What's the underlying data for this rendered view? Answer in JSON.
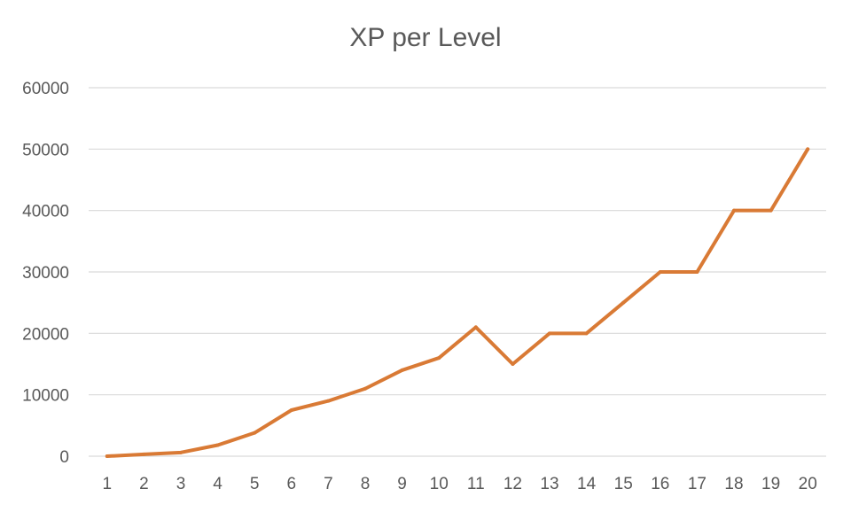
{
  "chart_data": {
    "type": "line",
    "title": "XP per Level",
    "xlabel": "",
    "ylabel": "",
    "categories": [
      "1",
      "2",
      "3",
      "4",
      "5",
      "6",
      "7",
      "8",
      "9",
      "10",
      "11",
      "12",
      "13",
      "14",
      "15",
      "16",
      "17",
      "18",
      "19",
      "20"
    ],
    "series": [
      {
        "values": [
          0,
          300,
          600,
          1800,
          3800,
          7500,
          9000,
          11000,
          14000,
          16000,
          21000,
          15000,
          20000,
          20000,
          25000,
          30000,
          30000,
          40000,
          40000,
          50000
        ],
        "color": "#d97a35"
      }
    ],
    "ylim": [
      0,
      60000
    ],
    "yticks": [
      "0",
      "10000",
      "20000",
      "30000",
      "40000",
      "50000",
      "60000"
    ],
    "grid": true,
    "legend": "none"
  }
}
